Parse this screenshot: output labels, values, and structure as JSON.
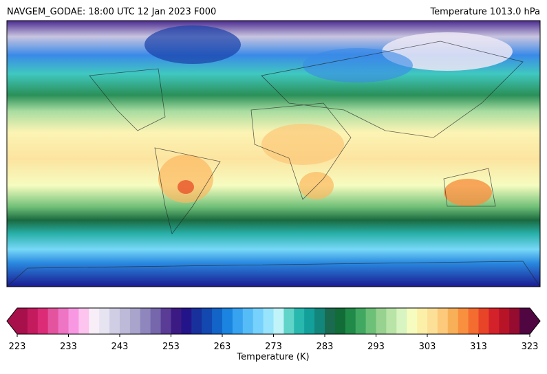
{
  "header": {
    "title_left": "NAVGEM_GODAE: 18:00 UTC 12 Jan 2023 F000",
    "title_right": "Temperature 1013.0 hPa"
  },
  "colorbar": {
    "label": "Temperature (K)",
    "lim": [
      223,
      323
    ],
    "ticks": [
      223,
      233,
      243,
      253,
      263,
      273,
      283,
      293,
      303,
      313,
      323
    ],
    "colors": [
      "#a8104c",
      "#c41a5e",
      "#dc2c78",
      "#e4549e",
      "#ee74c4",
      "#f898e2",
      "#fcc4ee",
      "#f8eef8",
      "#e6e4f0",
      "#d0cee4",
      "#bcbad8",
      "#a8a4cc",
      "#8e86bc",
      "#7666ac",
      "#5a3c96",
      "#3c1a84",
      "#24148a",
      "#18309c",
      "#1248b0",
      "#1264c8",
      "#1a84e0",
      "#36a2f0",
      "#56bcf8",
      "#76d2fc",
      "#98e4fc",
      "#c0f4f8",
      "#60d4c8",
      "#28b8ae",
      "#14a09a",
      "#12867a",
      "#1a6a50",
      "#126c38",
      "#208a48",
      "#40a860",
      "#6cc078",
      "#98d290",
      "#b8e4a8",
      "#d8f4c0",
      "#f6fcc0",
      "#fcf0a8",
      "#fce098",
      "#fcca7a",
      "#f8b058",
      "#f89040",
      "#f46c30",
      "#e84428",
      "#d4222a",
      "#b81428",
      "#960c30",
      "#500640"
    ]
  }
}
